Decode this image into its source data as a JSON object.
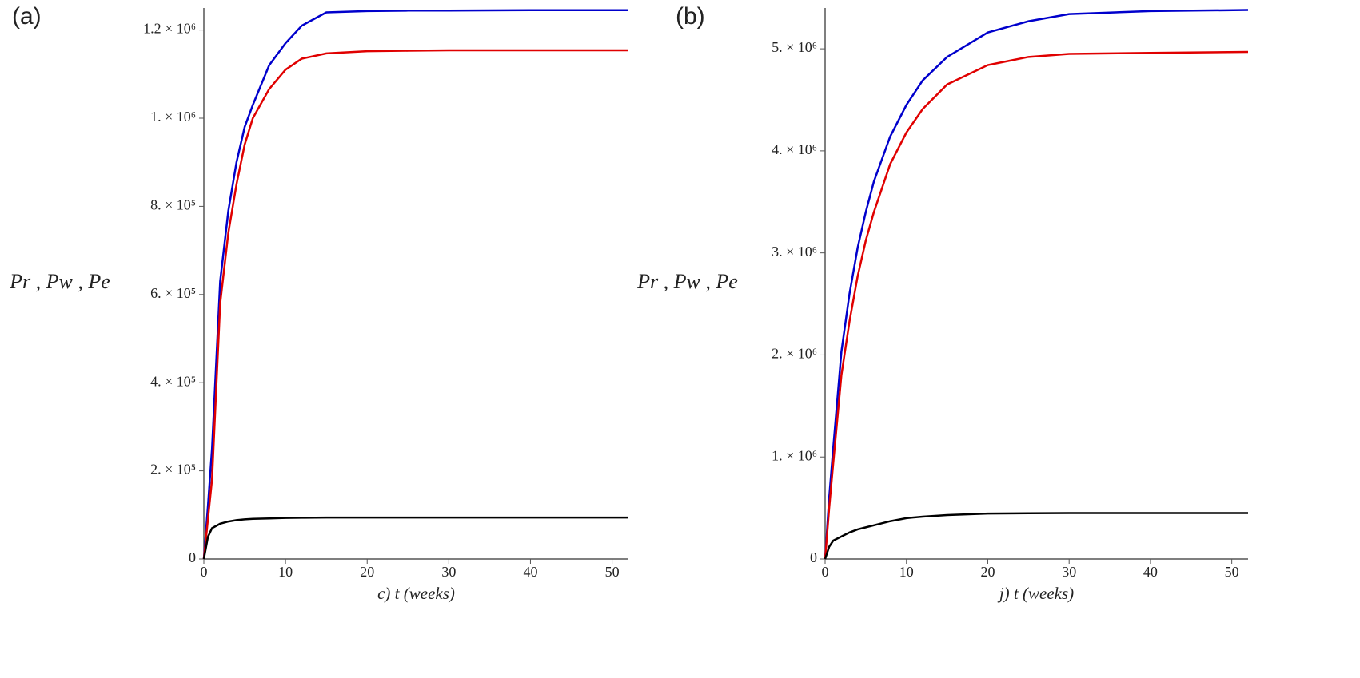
{
  "chart_data": [
    {
      "type": "line",
      "panel_label": "(a)",
      "x_label": "c) t (weeks)",
      "y_label": "Pr , Pw , Pe",
      "x": [
        0,
        0.5,
        1,
        2,
        3,
        4,
        5,
        6,
        8,
        10,
        12,
        15,
        20,
        25,
        30,
        40,
        52
      ],
      "xlim": [
        0,
        52
      ],
      "xticks": [
        0,
        10,
        20,
        30,
        40,
        50
      ],
      "ylim": [
        0,
        1250000
      ],
      "yticks": [
        0,
        {
          "value": 200000,
          "label": "2. × 10⁵"
        },
        {
          "value": 400000,
          "label": "4. × 10⁵"
        },
        {
          "value": 600000,
          "label": "6. × 10⁵"
        },
        {
          "value": 800000,
          "label": "8. × 10⁵"
        },
        {
          "value": 1000000,
          "label": "1. × 10⁶"
        },
        {
          "value": 1200000,
          "label": "1.2 × 10⁶"
        }
      ],
      "series": [
        {
          "color": "#0000cc",
          "values": [
            0,
            120000,
            250000,
            630000,
            790000,
            900000,
            980000,
            1030000,
            1120000,
            1170000,
            1210000,
            1240000,
            1243000,
            1244000,
            1244000,
            1245000,
            1245000
          ]
        },
        {
          "color": "#e00000",
          "values": [
            0,
            90000,
            180000,
            580000,
            740000,
            850000,
            940000,
            1000000,
            1066000,
            1110000,
            1135000,
            1147000,
            1152000,
            1153000,
            1154000,
            1154000,
            1154000
          ]
        },
        {
          "color": "#000000",
          "values": [
            0,
            50000,
            70000,
            80000,
            85000,
            88000,
            90000,
            91000,
            92000,
            93000,
            93500,
            94000,
            94000,
            94000,
            94000,
            94000,
            94000
          ]
        }
      ]
    },
    {
      "type": "line",
      "panel_label": "(b)",
      "x_label": "j) t (weeks)",
      "y_label": "Pr , Pw , Pe",
      "x": [
        0,
        0.5,
        1,
        2,
        3,
        4,
        5,
        6,
        8,
        10,
        12,
        15,
        20,
        25,
        30,
        40,
        52
      ],
      "xlim": [
        0,
        52
      ],
      "xticks": [
        0,
        10,
        20,
        30,
        40,
        50
      ],
      "ylim": [
        0,
        5400000
      ],
      "yticks": [
        0,
        {
          "value": 1000000,
          "label": "1. × 10⁶"
        },
        {
          "value": 2000000,
          "label": "2. × 10⁶"
        },
        {
          "value": 3000000,
          "label": "3. × 10⁶"
        },
        {
          "value": 4000000,
          "label": "4. × 10⁶"
        },
        {
          "value": 5000000,
          "label": "5. × 10⁶"
        }
      ],
      "series": [
        {
          "color": "#0000cc",
          "values": [
            0,
            600000,
            1090000,
            2030000,
            2600000,
            3050000,
            3400000,
            3700000,
            4140000,
            4450000,
            4690000,
            4920000,
            5160000,
            5270000,
            5340000,
            5370000,
            5380000
          ]
        },
        {
          "color": "#e00000",
          "values": [
            0,
            500000,
            940000,
            1800000,
            2330000,
            2770000,
            3120000,
            3400000,
            3870000,
            4180000,
            4410000,
            4650000,
            4840000,
            4920000,
            4950000,
            4960000,
            4970000
          ]
        },
        {
          "color": "#000000",
          "values": [
            0,
            120000,
            180000,
            220000,
            260000,
            290000,
            310000,
            330000,
            370000,
            400000,
            415000,
            430000,
            445000,
            448000,
            450000,
            450000,
            450000
          ]
        }
      ]
    }
  ]
}
